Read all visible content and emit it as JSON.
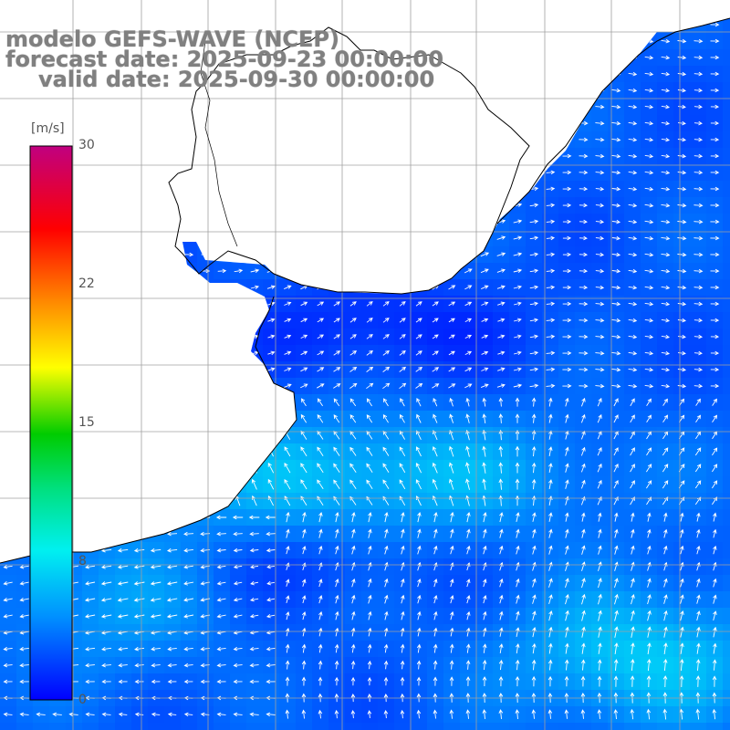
{
  "title": {
    "line1": "modelo GEFS-WAVE (NCEP)",
    "line2": "forecast date: 2025-09-23 00:00:00",
    "line3": "valid date: 2025-09-30 00:00:00"
  },
  "colorbar": {
    "unit": "[m/s]",
    "ticks": [
      {
        "label": "30",
        "value": 30
      },
      {
        "label": "22",
        "value": 22
      },
      {
        "label": "15",
        "value": 15
      },
      {
        "label": "8",
        "value": 8
      },
      {
        "label": "0",
        "value": 0
      }
    ],
    "range": [
      0,
      30
    ],
    "colors": [
      "#0000ff",
      "#00e0ff",
      "#00dd00",
      "#ffff00",
      "#ff7700",
      "#ff0000",
      "#c00080"
    ]
  },
  "map": {
    "land_color": "#ffffff",
    "grid_color": "#a0a0a0",
    "coast_color": "#000000",
    "arrow_color": "#ffffff"
  }
}
